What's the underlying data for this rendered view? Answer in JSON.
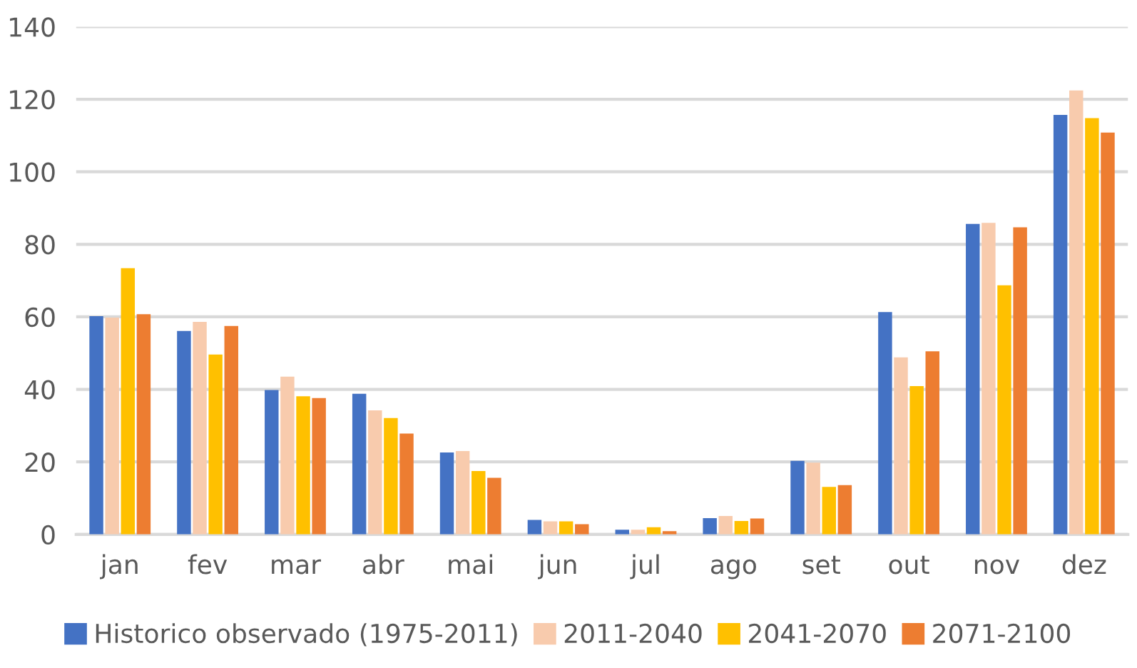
{
  "chart_data": {
    "type": "bar",
    "categories": [
      "jan",
      "fev",
      "mar",
      "abr",
      "mai",
      "jun",
      "jul",
      "ago",
      "set",
      "out",
      "nov",
      "dez"
    ],
    "series": [
      {
        "name": "Historico observado (1975-2011)",
        "color": "#4472c4",
        "values": [
          60.2,
          56.1,
          39.8,
          38.8,
          22.6,
          4.0,
          1.3,
          4.5,
          20.3,
          61.3,
          85.6,
          115.7
        ]
      },
      {
        "name": "2011-2040",
        "color": "#f8cbad",
        "values": [
          59.8,
          58.6,
          43.5,
          34.2,
          23.0,
          3.6,
          1.3,
          5.1,
          19.8,
          48.8,
          85.9,
          122.4
        ]
      },
      {
        "name": "2041-2070",
        "color": "#ffc000",
        "values": [
          73.4,
          49.6,
          38.1,
          32.1,
          17.5,
          3.6,
          2.0,
          3.7,
          13.1,
          40.9,
          68.7,
          114.8
        ]
      },
      {
        "name": "2071-2100",
        "color": "#ed7d31",
        "values": [
          60.7,
          57.5,
          37.6,
          27.8,
          15.6,
          2.8,
          0.9,
          4.4,
          13.6,
          50.5,
          84.7,
          110.8
        ]
      }
    ],
    "ylim": [
      0,
      140
    ],
    "yticks": [
      0,
      20,
      40,
      60,
      80,
      100,
      120,
      140
    ],
    "grid": "y",
    "legend": "bottom"
  }
}
